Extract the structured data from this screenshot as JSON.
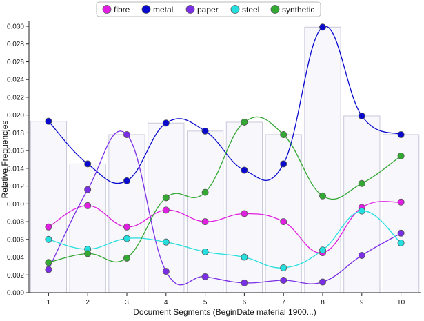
{
  "chart_data": {
    "type": "line",
    "title": "",
    "xlabel": "Document Segments (BeginDate material 1900...)",
    "ylabel": "Relative Frequencies",
    "categories": [
      "1",
      "2",
      "3",
      "4",
      "5",
      "6",
      "7",
      "8",
      "9",
      "10"
    ],
    "ylim": [
      0,
      0.03
    ],
    "yticks": [
      "0.000",
      "0.002",
      "0.004",
      "0.006",
      "0.008",
      "0.010",
      "0.012",
      "0.014",
      "0.016",
      "0.018",
      "0.020",
      "0.022",
      "0.024",
      "0.026",
      "0.028",
      "0.030"
    ],
    "grid": false,
    "legend_placement": "top-center",
    "background_bars": [
      0.0193,
      0.0145,
      0.0178,
      0.0191,
      0.0182,
      0.0192,
      0.0178,
      0.0299,
      0.0199,
      0.0178
    ],
    "series": [
      {
        "name": "fibre",
        "color": "#e01fe0",
        "values": [
          0.0074,
          0.0098,
          0.0074,
          0.0093,
          0.008,
          0.0089,
          0.008,
          0.0045,
          0.0096,
          0.0102
        ]
      },
      {
        "name": "metal",
        "color": "#0a0acf",
        "values": [
          0.0193,
          0.0145,
          0.0126,
          0.0191,
          0.0182,
          0.0138,
          0.0145,
          0.0299,
          0.0199,
          0.0178
        ]
      },
      {
        "name": "paper",
        "color": "#7a2ee6",
        "values": [
          0.0026,
          0.0116,
          0.0178,
          0.0024,
          0.0018,
          0.0011,
          0.0014,
          0.0012,
          0.0042,
          0.0067
        ]
      },
      {
        "name": "steel",
        "color": "#25dede",
        "values": [
          0.006,
          0.0049,
          0.0061,
          0.0057,
          0.0046,
          0.004,
          0.0028,
          0.0048,
          0.0092,
          0.0056
        ]
      },
      {
        "name": "synthetic",
        "color": "#33a833",
        "values": [
          0.0034,
          0.0044,
          0.0039,
          0.0107,
          0.0113,
          0.0192,
          0.0178,
          0.0109,
          0.0123,
          0.0154
        ]
      }
    ]
  }
}
